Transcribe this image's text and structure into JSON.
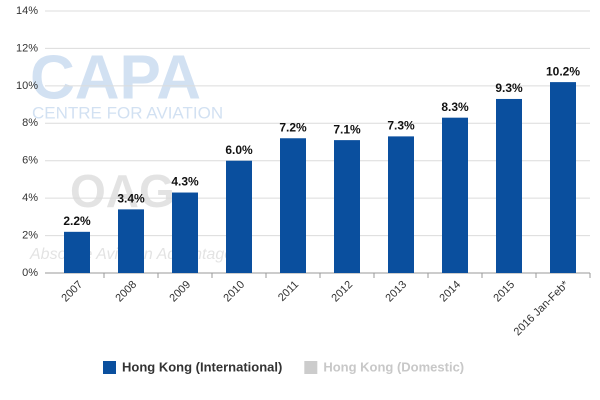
{
  "chart_data": {
    "type": "bar",
    "categories": [
      "2007",
      "2008",
      "2009",
      "2010",
      "2011",
      "2012",
      "2013",
      "2014",
      "2015",
      "2016 Jan-Feb*"
    ],
    "series": [
      {
        "name": "Hong Kong (International)",
        "color": "#0a4f9e",
        "values": [
          2.2,
          3.4,
          4.3,
          6.0,
          7.2,
          7.1,
          7.3,
          8.3,
          9.3,
          10.2
        ],
        "value_labels": [
          "2.2%",
          "3.4%",
          "4.3%",
          "6.0%",
          "7.2%",
          "7.1%",
          "7.3%",
          "8.3%",
          "9.3%",
          "10.2%"
        ]
      },
      {
        "name": "Hong Kong (Domestic)",
        "color": "#cccccc",
        "values": [
          null,
          null,
          null,
          null,
          null,
          null,
          null,
          null,
          null,
          null
        ]
      }
    ],
    "ylim": [
      0,
      14
    ],
    "yticks": [
      {
        "value": 0,
        "label": "0%"
      },
      {
        "value": 2,
        "label": "2%"
      },
      {
        "value": 4,
        "label": "4%"
      },
      {
        "value": 6,
        "label": "6%"
      },
      {
        "value": 8,
        "label": "8%"
      },
      {
        "value": 10,
        "label": "10%"
      },
      {
        "value": 12,
        "label": "12%"
      },
      {
        "value": 14,
        "label": "14%"
      }
    ],
    "grid": true,
    "legend": "bottom",
    "watermarks": [
      "CAPA",
      "CENTRE FOR AVIATION",
      "OAG",
      "Absolute Aviation Advantage"
    ]
  }
}
